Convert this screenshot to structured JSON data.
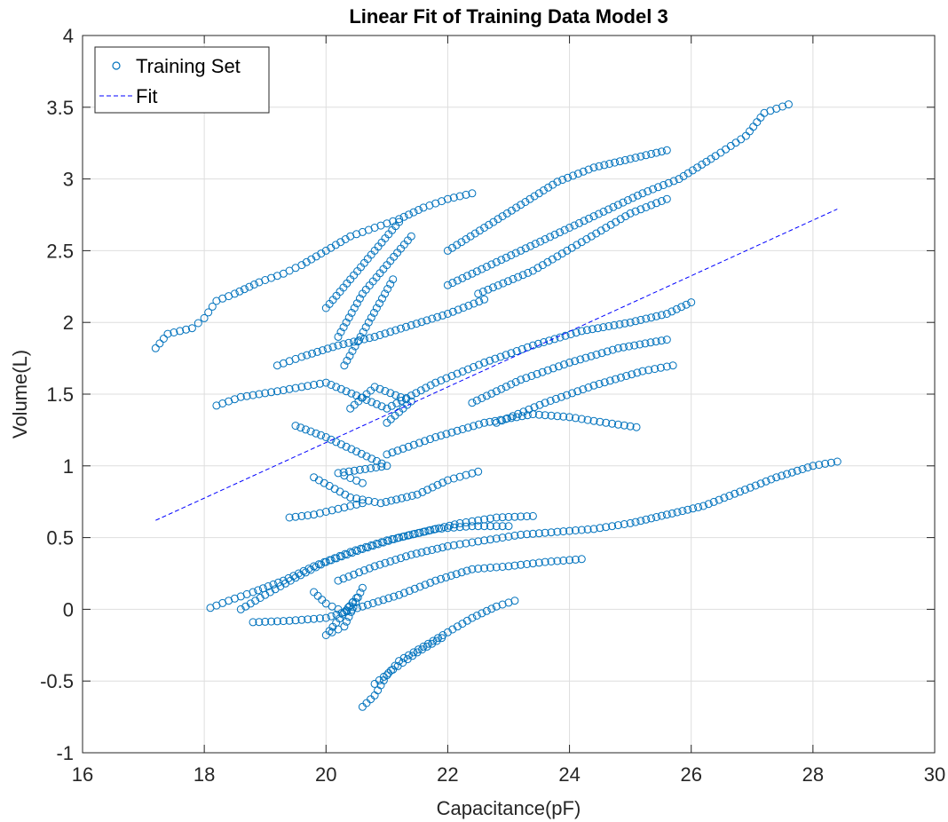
{
  "chart_data": {
    "type": "scatter",
    "title": "Linear Fit of Training Data Model 3",
    "xlabel": "Capacitance(pF)",
    "ylabel": "Volume(L)",
    "xlim": [
      16,
      30
    ],
    "ylim": [
      -1,
      4
    ],
    "xticks": [
      "16",
      "18",
      "20",
      "22",
      "24",
      "26",
      "28",
      "30"
    ],
    "yticks": [
      "-1",
      "-0.5",
      "0",
      "0.5",
      "1",
      "1.5",
      "2",
      "2.5",
      "3",
      "3.5",
      "4"
    ],
    "grid": true,
    "legend_position": "top-left",
    "colors": {
      "scatter": "#0072BD",
      "fit": "#0000FF",
      "axis": "#262626",
      "grid": "#dedede"
    },
    "series": [
      {
        "name": "Training Set",
        "kind": "markers",
        "marker": "circle-open",
        "points": [
          [
            17.2,
            1.82
          ],
          [
            17.4,
            1.92
          ],
          [
            17.8,
            1.96
          ],
          [
            18.0,
            2.03
          ],
          [
            18.2,
            2.15
          ],
          [
            18.5,
            2.2
          ],
          [
            18.9,
            2.28
          ],
          [
            19.3,
            2.34
          ],
          [
            19.6,
            2.4
          ],
          [
            20.0,
            2.5
          ],
          [
            20.4,
            2.6
          ],
          [
            20.8,
            2.66
          ],
          [
            21.2,
            2.72
          ],
          [
            21.6,
            2.8
          ],
          [
            22.0,
            2.86
          ],
          [
            22.4,
            2.9
          ],
          [
            22.0,
            2.5
          ],
          [
            22.6,
            2.66
          ],
          [
            23.2,
            2.82
          ],
          [
            23.8,
            2.98
          ],
          [
            24.4,
            3.08
          ],
          [
            25.0,
            3.14
          ],
          [
            25.6,
            3.2
          ],
          [
            22.0,
            2.26
          ],
          [
            22.8,
            2.42
          ],
          [
            23.6,
            2.58
          ],
          [
            24.4,
            2.74
          ],
          [
            25.2,
            2.9
          ],
          [
            25.8,
            3.0
          ],
          [
            26.4,
            3.16
          ],
          [
            26.9,
            3.3
          ],
          [
            27.2,
            3.46
          ],
          [
            27.6,
            3.52
          ],
          [
            22.5,
            2.2
          ],
          [
            23.4,
            2.36
          ],
          [
            24.2,
            2.56
          ],
          [
            25.0,
            2.76
          ],
          [
            25.6,
            2.86
          ],
          [
            20.0,
            2.1
          ],
          [
            20.4,
            2.3
          ],
          [
            20.8,
            2.5
          ],
          [
            21.2,
            2.7
          ],
          [
            20.2,
            1.9
          ],
          [
            20.6,
            2.2
          ],
          [
            21.0,
            2.4
          ],
          [
            21.4,
            2.6
          ],
          [
            20.3,
            1.7
          ],
          [
            20.7,
            2.0
          ],
          [
            21.1,
            2.3
          ],
          [
            19.2,
            1.7
          ],
          [
            19.6,
            1.76
          ],
          [
            20.2,
            1.84
          ],
          [
            20.8,
            1.9
          ],
          [
            21.4,
            1.98
          ],
          [
            22.0,
            2.06
          ],
          [
            22.6,
            2.16
          ],
          [
            18.2,
            1.42
          ],
          [
            18.6,
            1.48
          ],
          [
            19.2,
            1.52
          ],
          [
            19.6,
            1.55
          ],
          [
            20.0,
            1.58
          ],
          [
            21.0,
            1.4
          ],
          [
            21.8,
            1.58
          ],
          [
            22.6,
            1.72
          ],
          [
            23.4,
            1.84
          ],
          [
            24.2,
            1.94
          ],
          [
            25.0,
            2.0
          ],
          [
            25.6,
            2.06
          ],
          [
            26.0,
            2.14
          ],
          [
            22.4,
            1.44
          ],
          [
            23.2,
            1.6
          ],
          [
            24.0,
            1.72
          ],
          [
            24.8,
            1.82
          ],
          [
            25.6,
            1.88
          ],
          [
            22.8,
            1.3
          ],
          [
            23.6,
            1.44
          ],
          [
            24.4,
            1.56
          ],
          [
            25.2,
            1.66
          ],
          [
            25.7,
            1.7
          ],
          [
            21.0,
            1.08
          ],
          [
            21.8,
            1.2
          ],
          [
            22.6,
            1.3
          ],
          [
            23.4,
            1.36
          ],
          [
            24.0,
            1.34
          ],
          [
            24.6,
            1.3
          ],
          [
            25.1,
            1.27
          ],
          [
            19.5,
            1.28
          ],
          [
            20.0,
            1.2
          ],
          [
            20.5,
            1.1
          ],
          [
            21.0,
            1.0
          ],
          [
            20.2,
            0.95
          ],
          [
            20.6,
            0.88
          ],
          [
            21.0,
            1.3
          ],
          [
            21.4,
            1.45
          ],
          [
            20.8,
            1.55
          ],
          [
            20.4,
            1.4
          ],
          [
            19.8,
            0.92
          ],
          [
            20.4,
            0.78
          ],
          [
            20.9,
            0.74
          ],
          [
            21.5,
            0.8
          ],
          [
            22.0,
            0.9
          ],
          [
            22.5,
            0.96
          ],
          [
            19.4,
            0.64
          ],
          [
            19.8,
            0.66
          ],
          [
            20.2,
            0.7
          ],
          [
            20.6,
            0.74
          ],
          [
            18.1,
            0.01
          ],
          [
            18.4,
            0.06
          ],
          [
            18.8,
            0.12
          ],
          [
            19.3,
            0.2
          ],
          [
            19.8,
            0.3
          ],
          [
            20.4,
            0.4
          ],
          [
            21.0,
            0.48
          ],
          [
            21.6,
            0.54
          ],
          [
            22.2,
            0.6
          ],
          [
            22.8,
            0.64
          ],
          [
            23.4,
            0.65
          ],
          [
            18.6,
            0.0
          ],
          [
            19.0,
            0.1
          ],
          [
            19.5,
            0.22
          ],
          [
            20.0,
            0.33
          ],
          [
            20.6,
            0.42
          ],
          [
            21.2,
            0.5
          ],
          [
            21.8,
            0.56
          ],
          [
            22.4,
            0.58
          ],
          [
            23.0,
            0.58
          ],
          [
            18.8,
            -0.09
          ],
          [
            19.4,
            -0.08
          ],
          [
            20.0,
            -0.06
          ],
          [
            20.6,
            0.02
          ],
          [
            21.2,
            0.1
          ],
          [
            21.8,
            0.2
          ],
          [
            22.4,
            0.28
          ],
          [
            23.0,
            0.3
          ],
          [
            23.6,
            0.33
          ],
          [
            24.2,
            0.35
          ],
          [
            20.2,
            0.2
          ],
          [
            20.8,
            0.3
          ],
          [
            21.4,
            0.38
          ],
          [
            22.0,
            0.44
          ],
          [
            22.6,
            0.48
          ],
          [
            23.2,
            0.52
          ],
          [
            23.8,
            0.54
          ],
          [
            24.4,
            0.56
          ],
          [
            25.0,
            0.6
          ],
          [
            25.6,
            0.66
          ],
          [
            26.2,
            0.72
          ],
          [
            26.8,
            0.82
          ],
          [
            27.4,
            0.92
          ],
          [
            28.0,
            1.0
          ],
          [
            28.4,
            1.03
          ],
          [
            19.8,
            0.12
          ],
          [
            20.0,
            0.04
          ],
          [
            20.3,
            -0.02
          ],
          [
            20.5,
            0.08
          ],
          [
            20.0,
            -0.18
          ],
          [
            20.3,
            -0.12
          ],
          [
            20.6,
            0.15
          ],
          [
            20.6,
            -0.68
          ],
          [
            20.8,
            -0.6
          ],
          [
            21.0,
            -0.46
          ],
          [
            21.2,
            -0.36
          ],
          [
            21.6,
            -0.26
          ],
          [
            22.0,
            -0.16
          ],
          [
            22.4,
            -0.06
          ],
          [
            22.8,
            0.02
          ],
          [
            23.1,
            0.06
          ],
          [
            20.8,
            -0.52
          ],
          [
            21.1,
            -0.42
          ],
          [
            21.5,
            -0.3
          ],
          [
            21.9,
            -0.2
          ]
        ]
      },
      {
        "name": "Fit",
        "kind": "line",
        "style": "dashed",
        "x": [
          17.2,
          28.4
        ],
        "y": [
          0.62,
          2.79
        ]
      }
    ]
  }
}
